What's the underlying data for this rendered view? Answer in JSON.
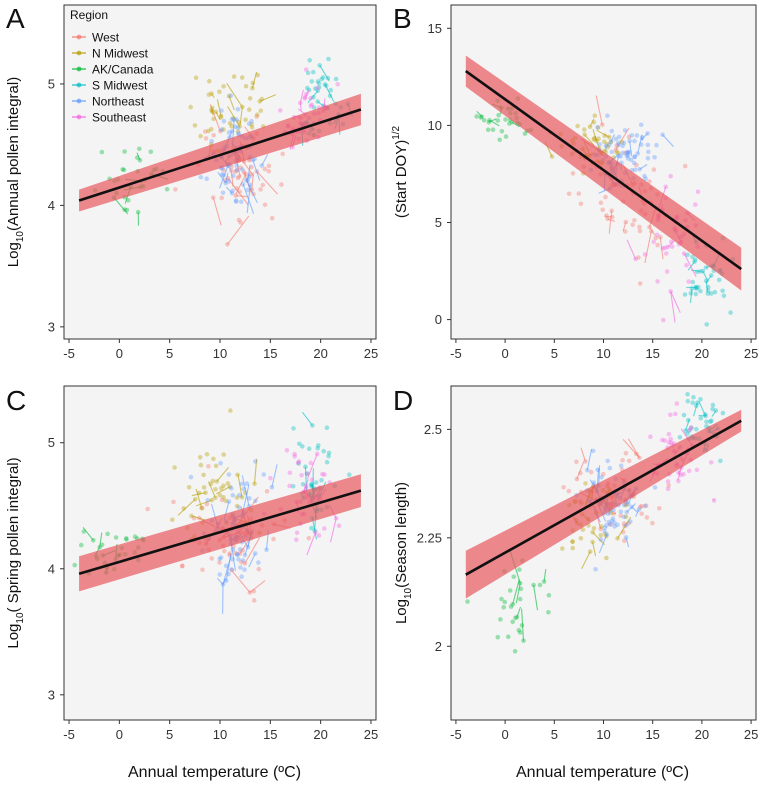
{
  "figure": {
    "letters": [
      "A",
      "B",
      "C",
      "D"
    ],
    "shared_xlabel": "Annual temperature (ºC)"
  },
  "legend": {
    "title": "Region",
    "entries": [
      {
        "name": "West",
        "color": "#F8766D"
      },
      {
        "name": "N Midwest",
        "color": "#B79F00"
      },
      {
        "name": "AK/Canada",
        "color": "#00BA38"
      },
      {
        "name": "S Midwest",
        "color": "#00BFC4"
      },
      {
        "name": "Northeast",
        "color": "#619CFF"
      },
      {
        "name": "Southeast",
        "color": "#F564E3"
      }
    ]
  },
  "colors": {
    "fit_line": "#111111",
    "ribbon": "#E8595E",
    "frame": "#333333",
    "panel_bg": "#F4F4F4"
  },
  "chart_data": [
    {
      "id": "A",
      "type": "scatter",
      "title": "",
      "xlabel": "",
      "ylabel_base": "Log",
      "ylabel_sub": "10",
      "ylabel_rest": "(Annual pollen integral)",
      "xlim": [
        -5.5,
        25.5
      ],
      "ylim": [
        2.9,
        5.65
      ],
      "xticks": [
        -5,
        0,
        5,
        10,
        15,
        20,
        25
      ],
      "yticks": [
        3,
        4,
        5
      ],
      "fit": {
        "x": [
          -4,
          24
        ],
        "y": [
          4.04,
          4.79
        ],
        "ci_halfwidth": [
          0.09,
          0.13
        ]
      },
      "cloud": [
        {
          "region": "West",
          "cx": 11,
          "cy": 4.3,
          "sx": 4.5,
          "sy": 0.35,
          "n": 60
        },
        {
          "region": "N Midwest",
          "cx": 11,
          "cy": 4.75,
          "sx": 3.5,
          "sy": 0.3,
          "n": 45
        },
        {
          "region": "AK/Canada",
          "cx": 1,
          "cy": 4.2,
          "sx": 3.5,
          "sy": 0.2,
          "n": 30
        },
        {
          "region": "S Midwest",
          "cx": 20,
          "cy": 4.9,
          "sx": 2,
          "sy": 0.3,
          "n": 40
        },
        {
          "region": "Northeast",
          "cx": 11.5,
          "cy": 4.4,
          "sx": 2.2,
          "sy": 0.35,
          "n": 70
        },
        {
          "region": "Southeast",
          "cx": 18.5,
          "cy": 4.7,
          "sx": 2.2,
          "sy": 0.25,
          "n": 40
        }
      ]
    },
    {
      "id": "B",
      "type": "scatter",
      "title": "",
      "xlabel": "",
      "ylabel_base": "(Start DOY)",
      "ylabel_sup": "1/2",
      "xlim": [
        -5.5,
        25.5
      ],
      "ylim": [
        -1,
        16.2
      ],
      "xticks": [
        -5,
        0,
        5,
        10,
        15,
        20,
        25
      ],
      "yticks": [
        0,
        5,
        10,
        15
      ],
      "fit": {
        "x": [
          -4,
          24
        ],
        "y": [
          12.8,
          2.6
        ],
        "ci_halfwidth": [
          0.8,
          1.1
        ]
      },
      "cloud": [
        {
          "region": "West",
          "cx": 12,
          "cy": 6,
          "sx": 4,
          "sy": 2.5,
          "n": 60
        },
        {
          "region": "N Midwest",
          "cx": 9,
          "cy": 9,
          "sx": 3,
          "sy": 1.3,
          "n": 45
        },
        {
          "region": "AK/Canada",
          "cx": 0,
          "cy": 10,
          "sx": 2.5,
          "sy": 0.8,
          "n": 30
        },
        {
          "region": "S Midwest",
          "cx": 20,
          "cy": 2,
          "sx": 2,
          "sy": 1.3,
          "n": 40
        },
        {
          "region": "Northeast",
          "cx": 12,
          "cy": 8.5,
          "sx": 2.5,
          "sy": 1.4,
          "n": 70
        },
        {
          "region": "Southeast",
          "cx": 17,
          "cy": 4,
          "sx": 2.5,
          "sy": 2.5,
          "n": 40
        }
      ]
    },
    {
      "id": "C",
      "type": "scatter",
      "title": "",
      "xlabel": "",
      "ylabel_base": "Log",
      "ylabel_sub": "10",
      "ylabel_rest": "( Spring pollen integral)",
      "xlim": [
        -5.5,
        25.5
      ],
      "ylim": [
        2.8,
        5.45
      ],
      "xticks": [
        -5,
        0,
        5,
        10,
        15,
        20,
        25
      ],
      "yticks": [
        3,
        4,
        5
      ],
      "fit": {
        "x": [
          -4,
          24
        ],
        "y": [
          3.96,
          4.62
        ],
        "ci_halfwidth": [
          0.14,
          0.13
        ]
      },
      "cloud": [
        {
          "region": "West",
          "cx": 11,
          "cy": 4.2,
          "sx": 4.5,
          "sy": 0.35,
          "n": 60
        },
        {
          "region": "N Midwest",
          "cx": 10,
          "cy": 4.6,
          "sx": 3.5,
          "sy": 0.3,
          "n": 45
        },
        {
          "region": "AK/Canada",
          "cx": 0,
          "cy": 4.15,
          "sx": 3,
          "sy": 0.2,
          "n": 30
        },
        {
          "region": "S Midwest",
          "cx": 19.5,
          "cy": 4.7,
          "sx": 2,
          "sy": 0.35,
          "n": 40
        },
        {
          "region": "Northeast",
          "cx": 11.5,
          "cy": 4.3,
          "sx": 2.2,
          "sy": 0.4,
          "n": 70
        },
        {
          "region": "Southeast",
          "cx": 18.5,
          "cy": 4.6,
          "sx": 2.2,
          "sy": 0.3,
          "n": 40
        }
      ]
    },
    {
      "id": "D",
      "type": "scatter",
      "title": "",
      "xlabel": "",
      "ylabel_base": "Log",
      "ylabel_sub": "10",
      "ylabel_rest": "(Season  length)",
      "xlim": [
        -5.5,
        25.5
      ],
      "ylim": [
        1.83,
        2.6
      ],
      "xticks": [
        -5,
        0,
        5,
        10,
        15,
        20,
        25
      ],
      "yticks": [
        2,
        2.25,
        2.5
      ],
      "ytick_labels": [
        "2",
        "2.25",
        "2.5"
      ],
      "fit": {
        "x": [
          -4,
          24
        ],
        "y": [
          2.165,
          2.52
        ],
        "ci_halfwidth": [
          0.055,
          0.025
        ]
      },
      "cloud": [
        {
          "region": "West",
          "cx": 11,
          "cy": 2.35,
          "sx": 4,
          "sy": 0.08,
          "n": 55
        },
        {
          "region": "N Midwest",
          "cx": 9,
          "cy": 2.3,
          "sx": 3,
          "sy": 0.07,
          "n": 45
        },
        {
          "region": "AK/Canada",
          "cx": 1,
          "cy": 2.1,
          "sx": 2.5,
          "sy": 0.12,
          "n": 30
        },
        {
          "region": "S Midwest",
          "cx": 20,
          "cy": 2.52,
          "sx": 2,
          "sy": 0.05,
          "n": 40
        },
        {
          "region": "Northeast",
          "cx": 11,
          "cy": 2.32,
          "sx": 2.2,
          "sy": 0.08,
          "n": 70
        },
        {
          "region": "Southeast",
          "cx": 17.5,
          "cy": 2.45,
          "sx": 2.5,
          "sy": 0.07,
          "n": 40
        }
      ]
    }
  ]
}
